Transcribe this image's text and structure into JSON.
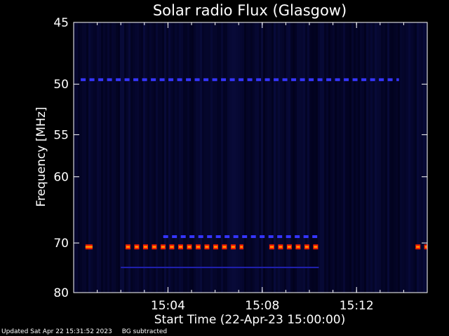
{
  "chart_data": {
    "type": "heatmap",
    "title": "Solar radio Flux (Glasgow)",
    "xlabel": "Start Time (22-Apr-23 15:00:00)",
    "ylabel": "Frequency [MHz]",
    "x_unit": "minutes after 15:00:00",
    "xlim": [
      0.0,
      15.0
    ],
    "ylim": [
      45,
      80
    ],
    "y_scale": "reciprocal",
    "x_ticks": [
      {
        "value": 4,
        "label": "15:04"
      },
      {
        "value": 8,
        "label": "15:08"
      },
      {
        "value": 12,
        "label": "15:12"
      }
    ],
    "y_ticks": [
      {
        "value": 45,
        "label": "45"
      },
      {
        "value": 50,
        "label": "50"
      },
      {
        "value": 55,
        "label": "55"
      },
      {
        "value": 60,
        "label": "60"
      },
      {
        "value": 70,
        "label": "70"
      },
      {
        "value": 80,
        "label": "80"
      }
    ],
    "colormap": [
      "#000010",
      "#0a0a40",
      "#2020c0",
      "#4040ff",
      "#ff0000",
      "#ffa000",
      "#ffffff"
    ],
    "bands": [
      {
        "freq": 70.7,
        "intensity": "high",
        "segments": [
          [
            0.5,
            0.8
          ],
          [
            2.2,
            7.2
          ],
          [
            8.3,
            10.4
          ],
          [
            14.5,
            15.0
          ]
        ]
      },
      {
        "freq": 68.9,
        "intensity": "medium",
        "segments": [
          [
            3.8,
            10.4
          ]
        ]
      },
      {
        "freq": 49.6,
        "intensity": "medium",
        "segments": [
          [
            0.3,
            13.8
          ]
        ]
      },
      {
        "freq": 74.6,
        "intensity": "low",
        "segments": [
          [
            2.0,
            10.4
          ]
        ]
      }
    ],
    "grid": false
  },
  "footer": {
    "updated": "Updated Sat Apr 22 15:31:52 2023",
    "note": "BG subtracted"
  }
}
